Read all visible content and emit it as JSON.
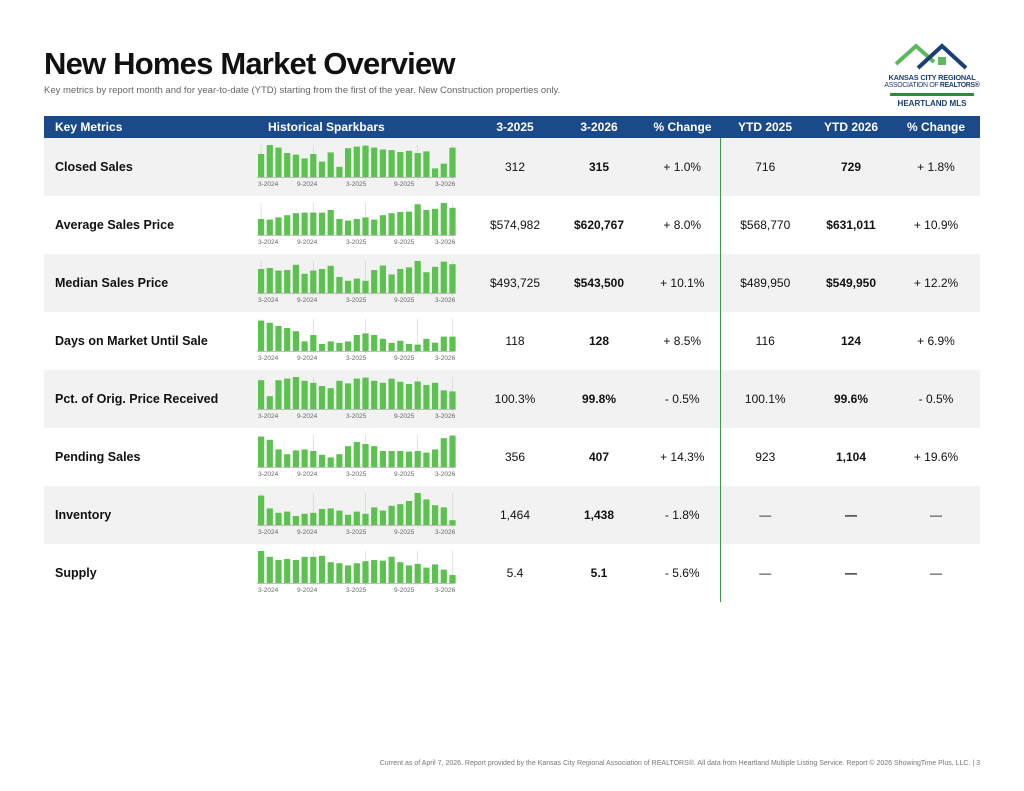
{
  "header": {
    "title": "New Homes Market Overview",
    "subtitle": "Key metrics by report month and for year-to-date (YTD) starting from the first of the year. New Construction properties only."
  },
  "logo": {
    "line1": "KANSAS CITY REGIONAL",
    "line2_prefix": "ASSOCIATION OF",
    "line2_bold": "REALTORS®",
    "line3": "HEARTLAND MLS"
  },
  "columns": [
    "Key Metrics",
    "Historical Sparkbars",
    "3-2025",
    "3-2026",
    "% Change",
    "YTD 2025",
    "YTD 2026",
    "% Change"
  ],
  "spark_labels": [
    "3-2024",
    "9-2024",
    "3-2025",
    "9-2025",
    "3-2026"
  ],
  "colors": {
    "header_bg": "#1b4a8a",
    "bar": "#5cc24f",
    "divider": "#3a9a4a",
    "row_alt": "#f2f2f2"
  },
  "rows": [
    {
      "metric": "Closed Sales",
      "val_2025": "312",
      "val_2026": "315",
      "pct": "+ 1.0%",
      "ytd_2025": "716",
      "ytd_2026": "729",
      "ytd_pct": "+ 1.8%",
      "spark": [
        0.72,
        1.0,
        0.92,
        0.75,
        0.7,
        0.58,
        0.72,
        0.48,
        0.77,
        0.32,
        0.9,
        0.95,
        0.98,
        0.92,
        0.86,
        0.84,
        0.78,
        0.82,
        0.75,
        0.8,
        0.27,
        0.42,
        0.92
      ]
    },
    {
      "metric": "Average Sales Price",
      "val_2025": "$574,982",
      "val_2026": "$620,767",
      "pct": "+ 8.0%",
      "ytd_2025": "$568,770",
      "ytd_2026": "$631,011",
      "ytd_pct": "+ 10.9%",
      "spark": [
        0.5,
        0.48,
        0.55,
        0.62,
        0.68,
        0.7,
        0.7,
        0.7,
        0.78,
        0.5,
        0.45,
        0.5,
        0.55,
        0.48,
        0.62,
        0.68,
        0.72,
        0.73,
        0.96,
        0.78,
        0.82,
        1.0,
        0.85
      ]
    },
    {
      "metric": "Median Sales Price",
      "val_2025": "$493,725",
      "val_2026": "$543,500",
      "pct": "+ 10.1%",
      "ytd_2025": "$489,950",
      "ytd_2026": "$549,950",
      "ytd_pct": "+ 12.2%",
      "spark": [
        0.75,
        0.78,
        0.7,
        0.72,
        0.88,
        0.6,
        0.7,
        0.75,
        0.85,
        0.5,
        0.38,
        0.45,
        0.38,
        0.72,
        0.86,
        0.58,
        0.75,
        0.8,
        1.0,
        0.65,
        0.82,
        0.98,
        0.9
      ]
    },
    {
      "metric": "Days on Market Until Sale",
      "val_2025": "118",
      "val_2026": "128",
      "pct": "+ 8.5%",
      "ytd_2025": "116",
      "ytd_2026": "124",
      "ytd_pct": "+ 6.9%",
      "spark": [
        0.95,
        0.88,
        0.78,
        0.72,
        0.62,
        0.3,
        0.5,
        0.22,
        0.3,
        0.25,
        0.3,
        0.5,
        0.55,
        0.5,
        0.38,
        0.25,
        0.32,
        0.22,
        0.2,
        0.38,
        0.26,
        0.45,
        0.45
      ]
    },
    {
      "metric": "Pct. of Orig. Price Received",
      "val_2025": "100.3%",
      "val_2026": "99.8%",
      "pct": "- 0.5%",
      "ytd_2025": "100.1%",
      "ytd_2026": "99.6%",
      "ytd_pct": "- 0.5%",
      "spark": [
        0.9,
        0.4,
        0.9,
        0.95,
        1.0,
        0.88,
        0.82,
        0.72,
        0.65,
        0.88,
        0.8,
        0.95,
        0.98,
        0.88,
        0.82,
        0.95,
        0.85,
        0.78,
        0.86,
        0.75,
        0.82,
        0.58,
        0.55
      ]
    },
    {
      "metric": "Pending Sales",
      "val_2025": "356",
      "val_2026": "407",
      "pct": "+ 14.3%",
      "ytd_2025": "923",
      "ytd_2026": "1,104",
      "ytd_pct": "+ 19.6%",
      "spark": [
        0.95,
        0.85,
        0.55,
        0.4,
        0.52,
        0.55,
        0.5,
        0.38,
        0.3,
        0.4,
        0.65,
        0.78,
        0.72,
        0.65,
        0.5,
        0.5,
        0.5,
        0.48,
        0.5,
        0.45,
        0.55,
        0.9,
        0.98
      ]
    },
    {
      "metric": "Inventory",
      "val_2025": "1,464",
      "val_2026": "1,438",
      "pct": "- 1.8%",
      "ytd_2025": "—",
      "ytd_2026": "—",
      "ytd_pct": "—",
      "spark": [
        0.92,
        0.52,
        0.38,
        0.42,
        0.28,
        0.35,
        0.38,
        0.5,
        0.52,
        0.45,
        0.32,
        0.42,
        0.35,
        0.55,
        0.45,
        0.6,
        0.65,
        0.75,
        1.0,
        0.8,
        0.62,
        0.55,
        0.15
      ]
    },
    {
      "metric": "Supply",
      "val_2025": "5.4",
      "val_2026": "5.1",
      "pct": "- 5.6%",
      "ytd_2025": "—",
      "ytd_2026": "—",
      "ytd_pct": "—",
      "spark": [
        1.0,
        0.82,
        0.72,
        0.75,
        0.72,
        0.82,
        0.82,
        0.85,
        0.65,
        0.62,
        0.55,
        0.62,
        0.68,
        0.72,
        0.7,
        0.82,
        0.65,
        0.55,
        0.6,
        0.48,
        0.58,
        0.42,
        0.25
      ]
    }
  ],
  "footer": "Current as of April 7, 2026. Report provided by the Kansas City Regional Association of REALTORS®. All data from Heartland Multiple Listing Service. Report © 2026 ShowingTime Plus, LLC.  |  3"
}
